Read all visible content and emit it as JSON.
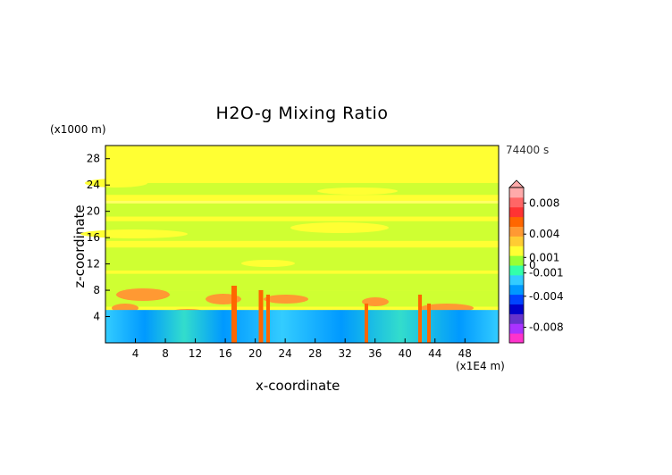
{
  "chart_data": {
    "type": "heatmap",
    "title": "H2O-g Mixing Ratio",
    "xlabel": "x-coordinate",
    "ylabel": "z-coordinate",
    "x_unit": "(x1E4 m)",
    "y_unit": "(x1000 m)",
    "time_label": "74400 s",
    "xlim": [
      0,
      52.5
    ],
    "ylim": [
      0,
      30
    ],
    "x_ticks": [
      "4",
      "8",
      "12",
      "16",
      "20",
      "24",
      "28",
      "32",
      "36",
      "40",
      "44",
      "48"
    ],
    "y_ticks": [
      "4",
      "8",
      "12",
      "16",
      "20",
      "24",
      "28"
    ],
    "colorbar": {
      "range": [
        -0.01,
        0.01
      ],
      "tick_labels": [
        "0.008",
        "0.004",
        "0.001",
        "0",
        "-0.001",
        "-0.004",
        "-0.008"
      ],
      "tick_values": [
        0.008,
        0.004,
        0.001,
        0,
        -0.001,
        -0.004,
        -0.008
      ],
      "colors": [
        "#ff33cc",
        "#aa33ff",
        "#6633cc",
        "#0000cc",
        "#0044ff",
        "#0099ff",
        "#33ccff",
        "#33ffaa",
        "#99ff33",
        "#ffff33",
        "#ffcc33",
        "#ff9933",
        "#ff6600",
        "#ff3333",
        "#ff6666",
        "#ffaaaa"
      ]
    },
    "layers": [
      {
        "z": [
          0,
          1
        ],
        "value": -0.002,
        "color": "#33ccff"
      },
      {
        "z": [
          1,
          5
        ],
        "value": -0.0015,
        "color": "#22bbee"
      },
      {
        "z": [
          5,
          8
        ],
        "value": 0.002,
        "color": "#ff9933"
      },
      {
        "z": [
          8,
          30
        ],
        "value": 0.0002,
        "color": "#ccff33"
      }
    ]
  }
}
